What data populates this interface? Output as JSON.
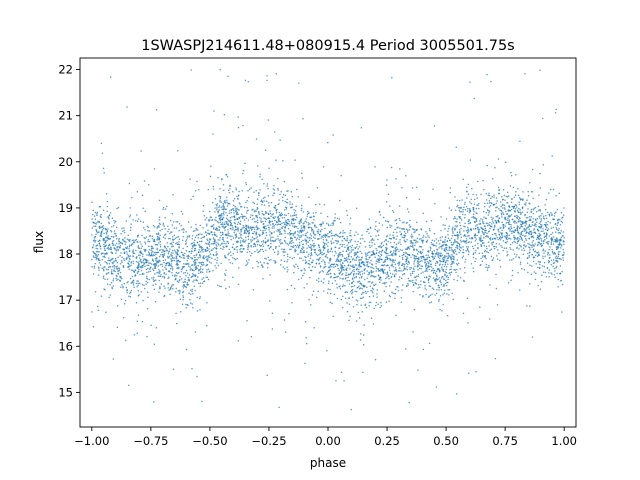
{
  "chart_data": {
    "type": "scatter",
    "title": "1SWASPJ214611.48+080915.4 Period 3005501.75s",
    "xlabel": "phase",
    "ylabel": "flux",
    "xlim": [
      -1.05,
      1.05
    ],
    "ylim": [
      14.25,
      22.25
    ],
    "xticks": [
      -1.0,
      -0.75,
      -0.5,
      -0.25,
      0.0,
      0.25,
      0.5,
      0.75,
      1.0
    ],
    "xtick_labels": [
      "−1.00",
      "−0.75",
      "−0.50",
      "−0.25",
      "0.00",
      "0.25",
      "0.50",
      "0.75",
      "1.00"
    ],
    "yticks": [
      15,
      16,
      17,
      18,
      19,
      20,
      21,
      22
    ],
    "ytick_labels": [
      "15",
      "16",
      "17",
      "18",
      "19",
      "20",
      "21",
      "22"
    ],
    "grid": false,
    "point_color": "#1f77b4",
    "series": [
      {
        "x_range": [
          -1.0,
          1.0
        ],
        "y_range": [
          14.6,
          22.0
        ],
        "points": [
          [
            -1.0,
            18.2
          ],
          [
            -0.97,
            18.3
          ],
          [
            -0.93,
            18.1
          ],
          [
            -0.9,
            18.0
          ],
          [
            -0.85,
            17.9
          ],
          [
            -0.8,
            17.8
          ],
          [
            -0.75,
            17.9
          ],
          [
            -0.7,
            18.0
          ],
          [
            -0.65,
            17.9
          ],
          [
            -0.6,
            17.7
          ],
          [
            -0.55,
            17.9
          ],
          [
            -0.5,
            18.3
          ],
          [
            -0.45,
            18.6
          ],
          [
            -0.4,
            18.6
          ],
          [
            -0.35,
            18.5
          ],
          [
            -0.3,
            18.6
          ],
          [
            -0.25,
            18.7
          ],
          [
            -0.2,
            18.6
          ],
          [
            -0.15,
            18.5
          ],
          [
            -0.1,
            18.3
          ],
          [
            -0.05,
            18.2
          ],
          [
            0.0,
            18.0
          ],
          [
            0.05,
            17.9
          ],
          [
            0.1,
            17.8
          ],
          [
            0.15,
            17.7
          ],
          [
            0.2,
            17.8
          ],
          [
            0.25,
            17.9
          ],
          [
            0.3,
            18.0
          ],
          [
            0.35,
            18.0
          ],
          [
            0.4,
            17.9
          ],
          [
            0.45,
            17.7
          ],
          [
            0.5,
            17.9
          ],
          [
            0.55,
            18.3
          ],
          [
            0.6,
            18.6
          ],
          [
            0.65,
            18.6
          ],
          [
            0.7,
            18.5
          ],
          [
            0.75,
            18.6
          ],
          [
            0.8,
            18.6
          ],
          [
            0.85,
            18.5
          ],
          [
            0.9,
            18.4
          ],
          [
            0.95,
            18.3
          ],
          [
            1.0,
            18.2
          ]
        ]
      }
    ]
  }
}
